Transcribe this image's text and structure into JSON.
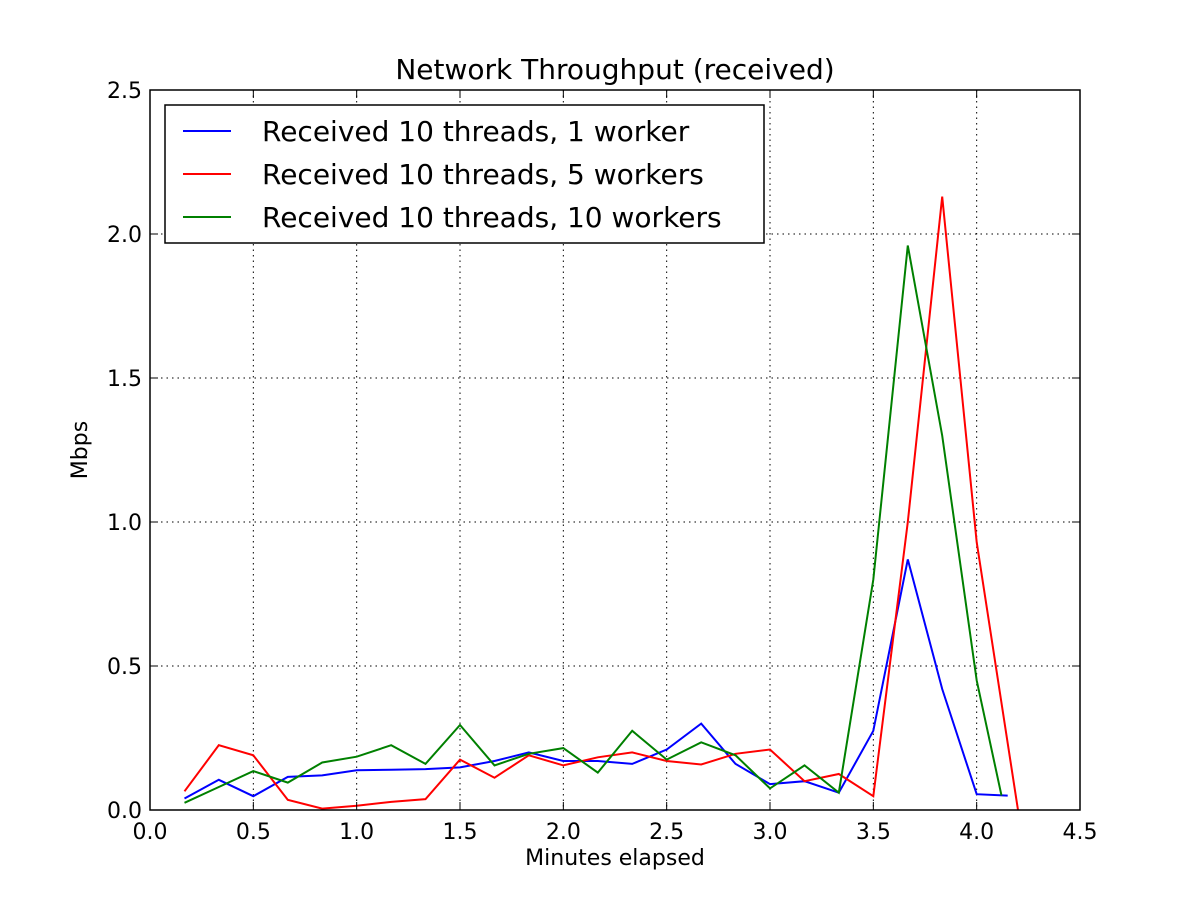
{
  "chart_data": {
    "type": "line",
    "title": "Network Throughput (received)",
    "xlabel": "Minutes elapsed",
    "ylabel": "Mbps",
    "xlim": [
      0.0,
      4.5
    ],
    "ylim": [
      0.0,
      2.5
    ],
    "xticks": [
      "0.0",
      "0.5",
      "1.0",
      "1.5",
      "2.0",
      "2.5",
      "3.0",
      "3.5",
      "4.0",
      "4.5"
    ],
    "yticks": [
      "0.0",
      "0.5",
      "1.0",
      "1.5",
      "2.0",
      "2.5"
    ],
    "grid": true,
    "legend_position": "top-left",
    "series": [
      {
        "name": "Received 10 threads, 1 worker",
        "color": "#0000ff",
        "x": [
          0.167,
          0.333,
          0.5,
          0.667,
          0.833,
          1.0,
          1.167,
          1.333,
          1.5,
          1.667,
          1.833,
          2.0,
          2.167,
          2.333,
          2.5,
          2.667,
          2.833,
          3.0,
          3.167,
          3.333,
          3.5,
          3.667,
          3.833,
          4.0,
          4.15
        ],
        "y": [
          0.04,
          0.105,
          0.048,
          0.115,
          0.12,
          0.138,
          0.14,
          0.142,
          0.148,
          0.17,
          0.2,
          0.17,
          0.17,
          0.16,
          0.21,
          0.3,
          0.16,
          0.09,
          0.1,
          0.06,
          0.275,
          0.87,
          0.42,
          0.055,
          0.05
        ]
      },
      {
        "name": "Received 10 threads, 5 workers",
        "color": "#ff0000",
        "x": [
          0.167,
          0.333,
          0.5,
          0.667,
          0.833,
          1.0,
          1.167,
          1.333,
          1.5,
          1.667,
          1.833,
          2.0,
          2.167,
          2.333,
          2.5,
          2.667,
          2.833,
          3.0,
          3.167,
          3.333,
          3.5,
          3.667,
          3.833,
          4.0,
          4.2
        ],
        "y": [
          0.065,
          0.225,
          0.19,
          0.035,
          0.005,
          0.015,
          0.028,
          0.038,
          0.175,
          0.112,
          0.19,
          0.155,
          0.183,
          0.2,
          0.17,
          0.158,
          0.195,
          0.21,
          0.1,
          0.125,
          0.048,
          1.0,
          2.13,
          0.93,
          0.0
        ]
      },
      {
        "name": "Received 10 threads, 10 workers",
        "color": "#008000",
        "x": [
          0.167,
          0.333,
          0.5,
          0.667,
          0.833,
          1.0,
          1.167,
          1.333,
          1.5,
          1.667,
          1.833,
          2.0,
          2.167,
          2.333,
          2.5,
          2.667,
          2.833,
          3.0,
          3.167,
          3.333,
          3.5,
          3.667,
          3.833,
          4.0,
          4.12
        ],
        "y": [
          0.025,
          0.08,
          0.135,
          0.095,
          0.165,
          0.185,
          0.225,
          0.16,
          0.295,
          0.155,
          0.195,
          0.215,
          0.13,
          0.275,
          0.175,
          0.235,
          0.19,
          0.075,
          0.155,
          0.06,
          0.8,
          1.96,
          1.3,
          0.45,
          0.05
        ]
      }
    ]
  }
}
